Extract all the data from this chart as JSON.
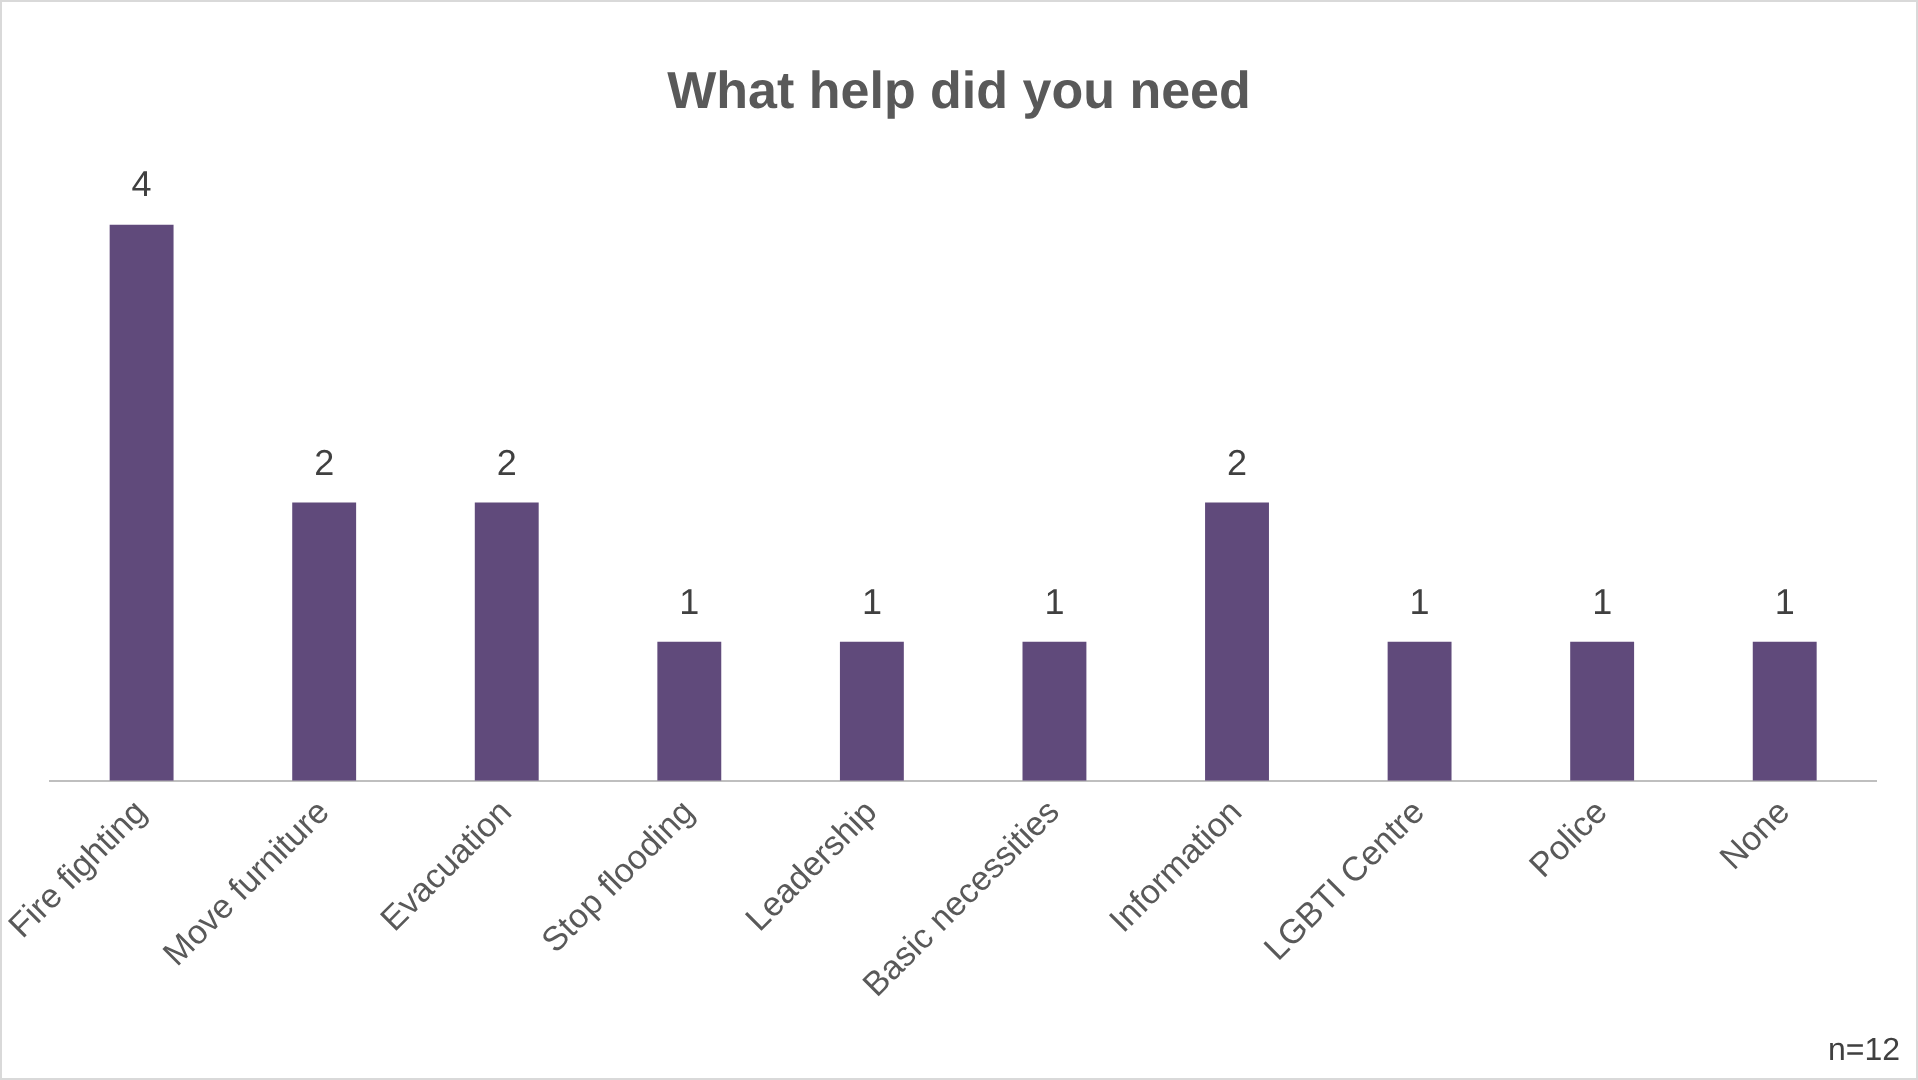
{
  "chart_data": {
    "type": "bar",
    "title": "What help did you need",
    "categories": [
      "Fire fighting",
      "Move furniture",
      "Evacuation",
      "Stop flooding",
      "Leadership",
      "Basic necessities",
      "Information",
      "LGBTI Centre",
      "Police",
      "None"
    ],
    "values": [
      4,
      2,
      2,
      1,
      1,
      1,
      2,
      1,
      1,
      1
    ],
    "color": "#604a7b",
    "data_labels": true,
    "grid": false,
    "legend": false,
    "annotations": [
      "n=12"
    ]
  }
}
